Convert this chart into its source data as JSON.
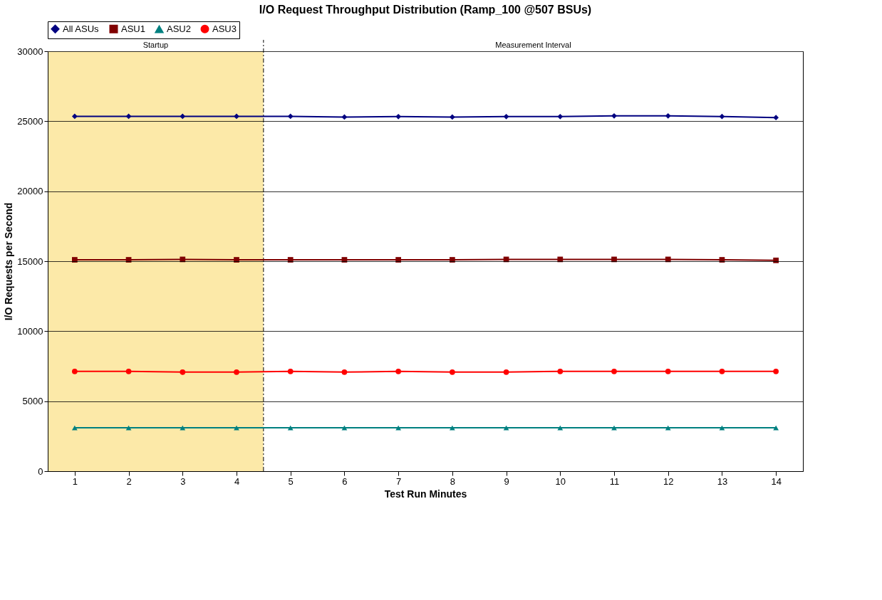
{
  "chart_data": {
    "type": "line",
    "title": "I/O Request Throughput Distribution (Ramp_100 @507 BSUs)",
    "xlabel": "Test Run Minutes",
    "ylabel": "I/O Requests per Second",
    "x": [
      1,
      2,
      3,
      4,
      5,
      6,
      7,
      8,
      9,
      10,
      11,
      12,
      13,
      14
    ],
    "xlim": [
      0.5,
      14.5
    ],
    "xticks": [
      1,
      2,
      3,
      4,
      5,
      6,
      7,
      8,
      9,
      10,
      11,
      12,
      13,
      14
    ],
    "ylim": [
      0,
      30000
    ],
    "yticks": [
      0,
      5000,
      10000,
      15000,
      20000,
      25000,
      30000
    ],
    "grid": "y",
    "legend": "top",
    "line_style": "solid",
    "series": [
      {
        "name": "All ASUs",
        "color": "#000080",
        "marker": "diamond",
        "values": [
          25350,
          25350,
          25350,
          25350,
          25350,
          25300,
          25330,
          25300,
          25330,
          25330,
          25380,
          25380,
          25340,
          25260
        ]
      },
      {
        "name": "ASU1",
        "color": "#800000",
        "marker": "square",
        "values": [
          15100,
          15100,
          15130,
          15100,
          15100,
          15100,
          15100,
          15100,
          15130,
          15130,
          15130,
          15130,
          15100,
          15060
        ]
      },
      {
        "name": "ASU2",
        "color": "#008080",
        "marker": "triangle",
        "values": [
          3100,
          3100,
          3100,
          3100,
          3100,
          3100,
          3100,
          3100,
          3100,
          3100,
          3100,
          3100,
          3100,
          3100
        ]
      },
      {
        "name": "ASU3",
        "color": "#ff0000",
        "marker": "circle",
        "values": [
          7130,
          7130,
          7080,
          7080,
          7130,
          7080,
          7130,
          7080,
          7080,
          7130,
          7130,
          7130,
          7130,
          7130
        ]
      }
    ],
    "bands": [
      {
        "axis": "x",
        "from": 0.5,
        "to": 4.5,
        "label": "Startup",
        "color": "#fce9a8"
      },
      {
        "axis": "x",
        "from": 4.5,
        "to": 14.5,
        "label": "Measurement Interval",
        "color": "#ffffff"
      }
    ],
    "ref_lines": [
      {
        "axis": "x",
        "value": 4.5,
        "label": null,
        "color": "#000000",
        "line_style": "dashdot"
      }
    ]
  }
}
